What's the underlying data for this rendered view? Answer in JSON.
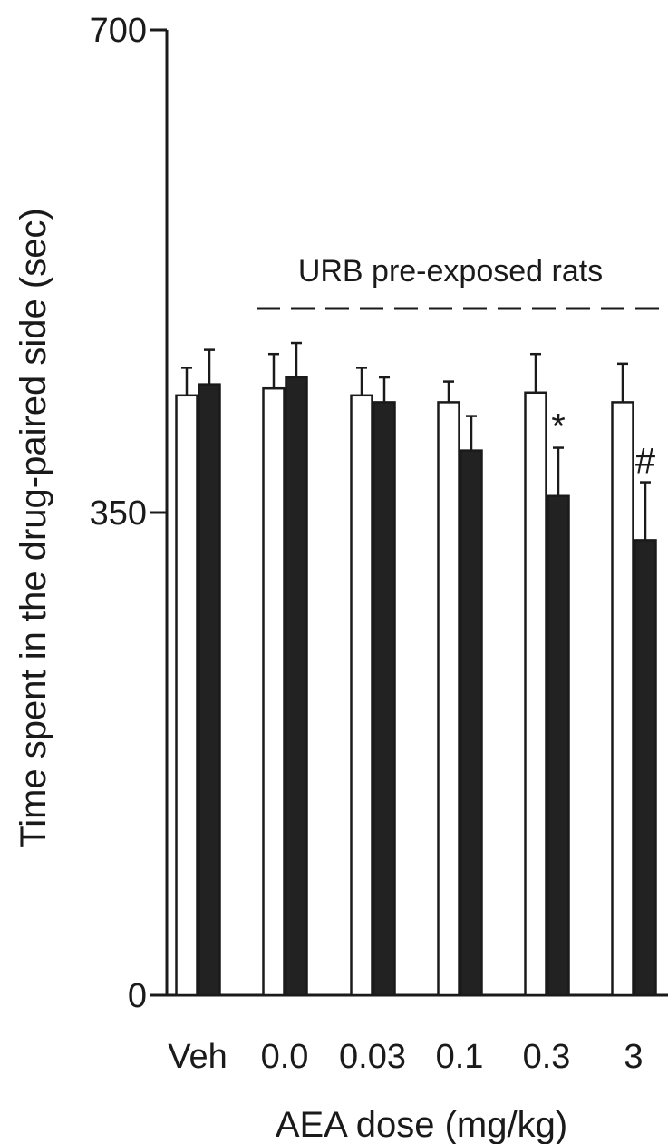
{
  "chart_data": {
    "type": "bar",
    "categories": [
      "Veh",
      "0.0",
      "0.03",
      "0.1",
      "0.3",
      "3"
    ],
    "series": [
      {
        "fill": "#ffffff",
        "values": [
          435,
          440,
          435,
          430,
          437,
          430
        ],
        "errors": [
          20,
          25,
          20,
          15,
          28,
          28
        ]
      },
      {
        "fill": "#222222",
        "values": [
          443,
          448,
          430,
          395,
          362,
          330
        ],
        "errors": [
          25,
          25,
          18,
          25,
          35,
          42
        ]
      }
    ],
    "ylabel": "Time spent in the drug-paired side (sec)",
    "xlabel": "AEA dose (mg/kg)",
    "ylim": [
      0,
      700
    ],
    "yticks": [
      0,
      350,
      700
    ],
    "annotation": {
      "text": "URB pre-exposed rats",
      "line_style": "dashed"
    },
    "significance": [
      "",
      "",
      "",
      "",
      "*",
      "#"
    ],
    "grid": false,
    "legend": "none"
  }
}
